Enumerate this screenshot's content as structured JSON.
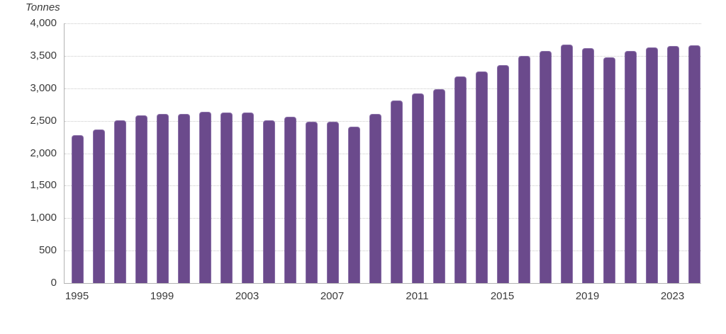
{
  "chart": {
    "unit_label": "Tonnes",
    "bar_color": "#6b4a8c",
    "bar_border_color": "#8a70a8",
    "grid_color": "#c9c9c9",
    "axis_color": "#b3b3b3",
    "text_color": "#3a3a3a"
  },
  "chart_data": {
    "type": "bar",
    "title": "",
    "xlabel": "",
    "ylabel": "Tonnes",
    "ylim": [
      0,
      4000
    ],
    "ytick_step": 500,
    "ytick_values": [
      0,
      500,
      1000,
      1500,
      2000,
      2500,
      3000,
      3500,
      4000
    ],
    "ytick_labels": [
      "0",
      "500",
      "1,000",
      "1,500",
      "2,000",
      "2,500",
      "3,000",
      "3,500",
      "4,000"
    ],
    "grid": "dotted horizontal",
    "legend": "none",
    "categories": [
      1995,
      1996,
      1997,
      1998,
      1999,
      2000,
      2001,
      2002,
      2003,
      2004,
      2005,
      2006,
      2007,
      2008,
      2009,
      2010,
      2011,
      2012,
      2013,
      2014,
      2015,
      2016,
      2017,
      2018,
      2019,
      2020,
      2021,
      2022,
      2023,
      2024
    ],
    "xtick_labels": [
      1995,
      1999,
      2003,
      2007,
      2011,
      2015,
      2019,
      2023
    ],
    "values": [
      2280,
      2370,
      2510,
      2580,
      2600,
      2610,
      2640,
      2630,
      2630,
      2510,
      2560,
      2480,
      2480,
      2410,
      2610,
      2810,
      2920,
      2990,
      3180,
      3260,
      3360,
      3500,
      3580,
      3670,
      3620,
      3480,
      3580,
      3630,
      3650,
      3660
    ]
  }
}
